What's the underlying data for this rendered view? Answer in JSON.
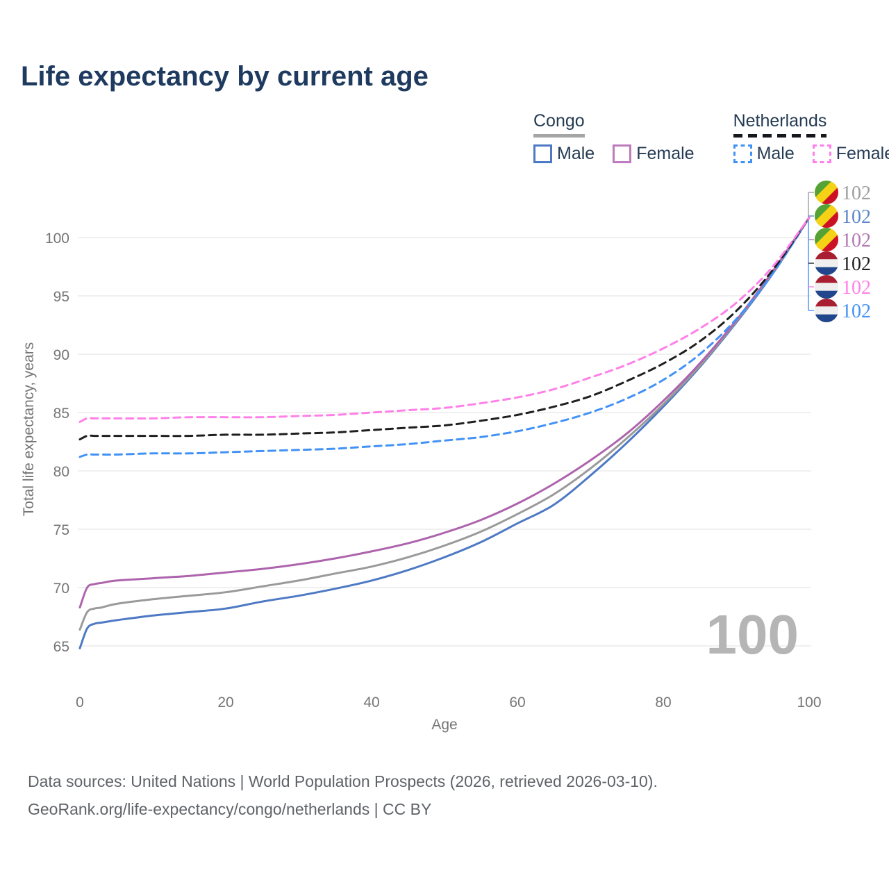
{
  "title": "Life expectancy by current age",
  "legend": {
    "congo": {
      "header": "Congo",
      "male": "Male",
      "female": "Female"
    },
    "netherlands": {
      "header": "Netherlands",
      "male": "Male",
      "female": "Female"
    }
  },
  "footer": {
    "line1": "Data sources: United Nations | World Population Prospects (2026, retrieved 2026-03-10).",
    "line2": "GeoRank.org/life-expectancy/congo/netherlands | CC BY"
  },
  "colors": {
    "title_text": "#1e3a5f",
    "legend_text": "#243b53",
    "axis_text": "#757575",
    "grid": "#e8e8e8",
    "watermark": "#b5b5b5",
    "congo_male": "#4e79c4",
    "congo_all": "#9a9a9a",
    "congo_female": "#ad64ad",
    "nl_male": "#4292f5",
    "nl_all": "#1f1f1f",
    "nl_female": "#ff80e8",
    "congo_flag_green": "#55a336",
    "congo_flag_yellow": "#f5d216",
    "congo_flag_red": "#cc1126",
    "nl_flag_red": "#a91f32",
    "nl_flag_white": "#efefef",
    "nl_flag_blue": "#21468b"
  },
  "chart_data": {
    "type": "line",
    "title": "Life expectancy by current age",
    "xlabel": "Age",
    "ylabel": "Total life expectancy, years",
    "x_ticks": [
      0,
      20,
      40,
      60,
      80,
      100
    ],
    "y_ticks": [
      65,
      70,
      75,
      80,
      85,
      90,
      95,
      100
    ],
    "xlim": [
      0,
      100
    ],
    "ylim": [
      63,
      103
    ],
    "grid": "horizontal-only",
    "legend_position": "top-right",
    "age_counter": "100",
    "ages": [
      0,
      1,
      2,
      3,
      5,
      10,
      15,
      20,
      25,
      30,
      35,
      40,
      45,
      50,
      55,
      60,
      65,
      70,
      75,
      80,
      85,
      90,
      95,
      100
    ],
    "series": [
      {
        "name": "Congo Male",
        "country": "congo",
        "sex": "male",
        "style": "solid",
        "color": "#4e79c4",
        "values": [
          64.8,
          66.5,
          66.9,
          67.0,
          67.2,
          67.6,
          67.9,
          68.2,
          68.8,
          69.3,
          69.9,
          70.6,
          71.5,
          72.6,
          73.9,
          75.5,
          77.1,
          79.6,
          82.4,
          85.5,
          88.9,
          92.7,
          96.9,
          101.7
        ]
      },
      {
        "name": "Congo",
        "country": "congo",
        "sex": "all",
        "style": "solid",
        "color": "#9a9a9a",
        "values": [
          66.4,
          67.9,
          68.2,
          68.3,
          68.6,
          69.0,
          69.3,
          69.6,
          70.1,
          70.6,
          71.2,
          71.8,
          72.6,
          73.6,
          74.8,
          76.3,
          78.0,
          80.2,
          82.8,
          85.7,
          89.0,
          92.8,
          97.0,
          101.7
        ]
      },
      {
        "name": "Congo Female",
        "country": "congo",
        "sex": "female",
        "style": "solid",
        "color": "#ad64ad",
        "values": [
          68.3,
          70.0,
          70.3,
          70.4,
          70.6,
          70.8,
          71.0,
          71.3,
          71.6,
          72.0,
          72.5,
          73.1,
          73.8,
          74.7,
          75.8,
          77.2,
          78.9,
          80.9,
          83.2,
          86.0,
          89.2,
          92.9,
          97.1,
          101.7
        ]
      },
      {
        "name": "Netherlands Male",
        "country": "netherlands",
        "sex": "male",
        "style": "dashed",
        "color": "#4292f5",
        "values": [
          81.2,
          81.4,
          81.4,
          81.4,
          81.4,
          81.5,
          81.5,
          81.6,
          81.7,
          81.8,
          81.9,
          82.1,
          82.3,
          82.6,
          82.9,
          83.4,
          84.1,
          85.0,
          86.2,
          87.8,
          90.0,
          93.0,
          96.9,
          101.7
        ]
      },
      {
        "name": "Netherlands",
        "country": "netherlands",
        "sex": "all",
        "style": "dashed",
        "color": "#1f1f1f",
        "values": [
          82.7,
          83.0,
          83.0,
          83.0,
          83.0,
          83.0,
          83.0,
          83.1,
          83.1,
          83.2,
          83.3,
          83.5,
          83.7,
          83.9,
          84.3,
          84.8,
          85.5,
          86.4,
          87.7,
          89.2,
          91.1,
          93.7,
          97.2,
          101.7
        ]
      },
      {
        "name": "Netherlands Female",
        "country": "netherlands",
        "sex": "female",
        "style": "dashed",
        "color": "#ff80e8",
        "values": [
          84.2,
          84.5,
          84.5,
          84.5,
          84.5,
          84.5,
          84.6,
          84.6,
          84.6,
          84.7,
          84.8,
          85.0,
          85.2,
          85.4,
          85.8,
          86.3,
          87.0,
          88.0,
          89.1,
          90.5,
          92.2,
          94.4,
          97.5,
          101.7
        ]
      }
    ],
    "end_labels": [
      {
        "flag": "congo",
        "series": "Congo",
        "value": "102",
        "color": "#9e9e9e"
      },
      {
        "flag": "congo",
        "series": "Congo Male",
        "value": "102",
        "color": "#5b86c9"
      },
      {
        "flag": "congo",
        "series": "Congo Female",
        "value": "102",
        "color": "#b279b2"
      },
      {
        "flag": "netherlands",
        "series": "Netherlands",
        "value": "102",
        "color": "#212121"
      },
      {
        "flag": "netherlands",
        "series": "Netherlands Female",
        "value": "102",
        "color": "#ff80e8"
      },
      {
        "flag": "netherlands",
        "series": "Netherlands Male",
        "value": "102",
        "color": "#4292f5"
      }
    ]
  }
}
